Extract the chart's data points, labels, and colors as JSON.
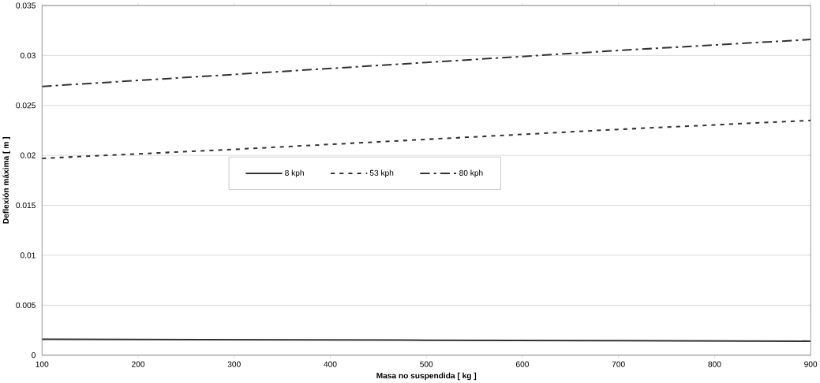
{
  "chart_data": {
    "type": "line",
    "xlabel": "Masa no suspendida [ kg ]",
    "ylabel": "Deflexión máxima [ m ]",
    "x": [
      100,
      300,
      500,
      700,
      900
    ],
    "series": [
      {
        "name": "8 kph",
        "color": "#333333",
        "line_style": "solid",
        "values": [
          0.0016,
          0.00155,
          0.0015,
          0.00145,
          0.0014
        ]
      },
      {
        "name": "53 kph",
        "color": "#333333",
        "line_style": "dashed",
        "values": [
          0.0197,
          0.0206,
          0.0216,
          0.0226,
          0.0235
        ]
      },
      {
        "name": "80 kph",
        "color": "#333333",
        "line_style": "dashed",
        "values": [
          0.0269,
          0.0281,
          0.0293,
          0.0305,
          0.0316
        ]
      }
    ],
    "xlim": [
      100,
      900
    ],
    "xticks": [
      100,
      200,
      300,
      400,
      500,
      600,
      700,
      800,
      900
    ],
    "ylim": [
      0,
      0.035
    ],
    "yticks": [
      {
        "value": 0,
        "label": "0"
      },
      {
        "value": 0.005,
        "label": "0.005"
      },
      {
        "value": 0.01,
        "label": "0.01"
      },
      {
        "value": 0.015,
        "label": "0.015"
      },
      {
        "value": 0.02,
        "label": "0.02"
      },
      {
        "value": 0.025,
        "label": "0.025"
      },
      {
        "value": 0.03,
        "label": "0.03"
      },
      {
        "value": 0.035,
        "label": "0.035"
      }
    ],
    "grid": "y",
    "legend": "center",
    "marker": "none"
  }
}
